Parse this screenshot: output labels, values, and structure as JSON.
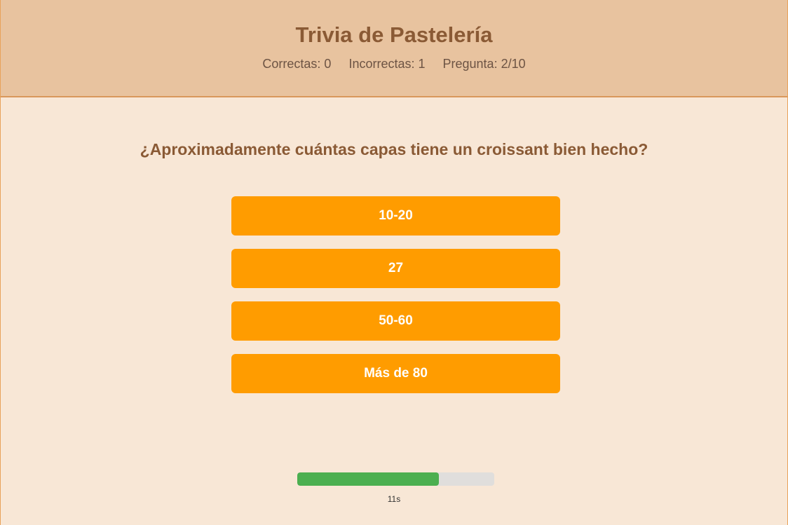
{
  "header": {
    "title": "Trivia de Pastelería",
    "stats": {
      "correct_text": "Correctas: 0",
      "incorrect_text": "Incorrectas: 1",
      "question_text": "Pregunta: 2/10"
    }
  },
  "question": {
    "text": "¿Aproximadamente cuántas capas tiene un croissant bien hecho?"
  },
  "answers": [
    {
      "label": "10-20"
    },
    {
      "label": "27"
    },
    {
      "label": "50-60"
    },
    {
      "label": "Más de 80"
    }
  ],
  "timer": {
    "text": "11s",
    "progress": 0.72
  },
  "colors": {
    "header_bg": "#e8c39f",
    "page_bg": "#f8e7d6",
    "accent": "#ff9c00",
    "timer_fill": "#4caf50",
    "title_text": "#8a5a35"
  }
}
